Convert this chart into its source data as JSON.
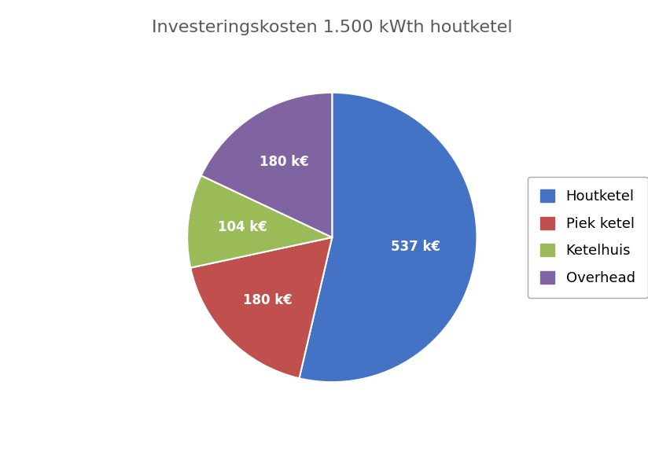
{
  "title": "Investeringskosten 1.500 kWth houtketel",
  "title_fontsize": 16,
  "title_color": "#595959",
  "labels": [
    "Houtketel",
    "Piek ketel",
    "Ketelhuis",
    "Overhead"
  ],
  "values": [
    537,
    180,
    104,
    180
  ],
  "label_texts": [
    "537 k€",
    "180 k€",
    "104 k€",
    "180 k€"
  ],
  "colors": [
    "#4472C4",
    "#C0504D",
    "#9BBB59",
    "#8064A2"
  ],
  "background_color": "#FFFFFF",
  "legend_fontsize": 13,
  "label_fontsize": 12,
  "startangle": 90,
  "label_radii": [
    0.58,
    0.62,
    0.62,
    0.62
  ]
}
